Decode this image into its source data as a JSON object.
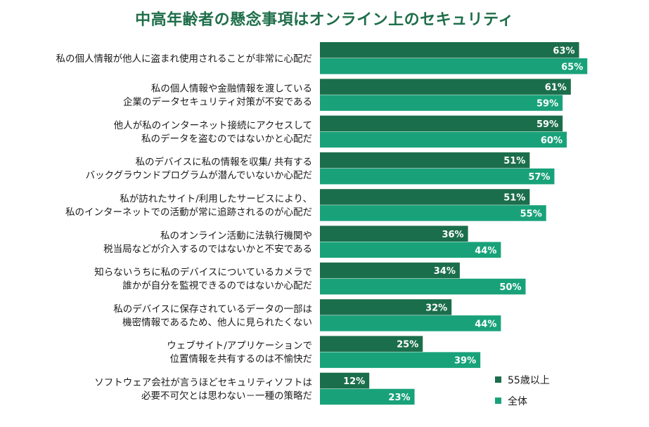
{
  "chart_data": {
    "type": "bar",
    "orientation": "horizontal",
    "title": "中高年齢者の懸念事項はオンライン上のセキュリティ",
    "categories": [
      [
        "私の個人情報が他人に盗まれ使用されることが非常に心配だ"
      ],
      [
        "私の個人情報や金融情報を渡している",
        "企業のデータセキュリティ対策が不安である"
      ],
      [
        "他人が私のインターネット接続にアクセスして",
        "私のデータを盗むのではないかと心配だ"
      ],
      [
        "私のデバイスに私の情報を収集/ 共有する",
        "バックグラウンドプログラムが潜んでいないか心配だ"
      ],
      [
        "私が訪れたサイト/利用したサービスにより、",
        "私のインターネットでの活動が常に追跡されるのが心配だ"
      ],
      [
        "私のオンライン活動に法執行機関や",
        "税当局などが介入するのではないかと不安である"
      ],
      [
        "知らないうちに私のデバイスについているカメラで",
        "誰かが自分を監視できるのではないか心配だ"
      ],
      [
        "私のデバイスに保存されているデータの一部は",
        "機密情報であるため、他人に見られたくない"
      ],
      [
        "ウェブサイト/アプリケーションで",
        "位置情報を共有するのは不愉快だ"
      ],
      [
        "ソフトウェア会社が言うほどセキュリティソフトは",
        "必要不可欠とは思わない－一種の策略だ"
      ]
    ],
    "series": [
      {
        "name": "55歳以上",
        "color": "#1b6e4b",
        "values": [
          63,
          61,
          59,
          51,
          51,
          36,
          34,
          32,
          25,
          12
        ],
        "labels": [
          "63%",
          "61%",
          "59%",
          "51%",
          "51%",
          "36%",
          "34%",
          "32%",
          "25%",
          "12%"
        ]
      },
      {
        "name": "全体",
        "color": "#19a27a",
        "values": [
          65,
          59,
          60,
          57,
          55,
          44,
          50,
          44,
          39,
          23
        ],
        "labels": [
          "65%",
          "59%",
          "60%",
          "57%",
          "55%",
          "44%",
          "50%",
          "44%",
          "39%",
          "23%"
        ]
      }
    ],
    "xlim": [
      0,
      100
    ],
    "legend": "bottom-right",
    "grid": false
  }
}
